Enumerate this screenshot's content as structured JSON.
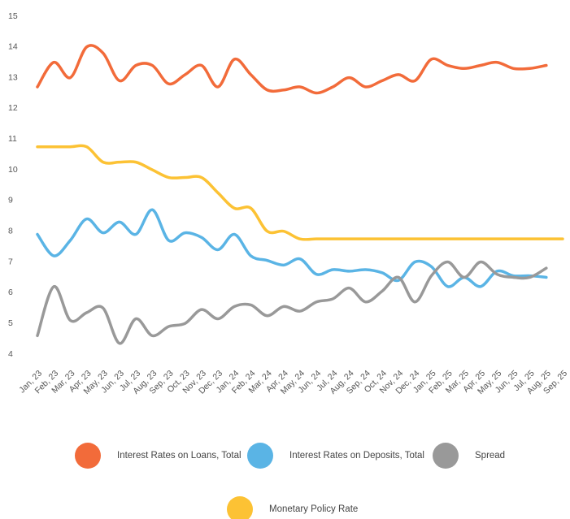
{
  "chart_data": {
    "type": "line",
    "categories": [
      "Jan, 23",
      "Feb, 23",
      "Mar, 23",
      "Apr, 23",
      "May, 23",
      "Jun, 23",
      "Jul, 23",
      "Aug, 23",
      "Sep, 23",
      "Oct, 23",
      "Nov, 23",
      "Dec, 23",
      "Jan, 24",
      "Feb, 24",
      "Mar, 24",
      "Apr, 24",
      "May, 24",
      "Jun, 24",
      "Jul, 24",
      "Aug, 24",
      "Sep, 24",
      "Oct, 24",
      "Nov, 24",
      "Dec, 24",
      "Jan, 25",
      "Feb, 25",
      "Mar, 25",
      "Apr, 25",
      "May, 25",
      "Jun, 25",
      "Jul, 25",
      "Aug, 25",
      "Sep, 25"
    ],
    "series": [
      {
        "name": "Interest Rates on Loans, Total",
        "color": "#f26b3a",
        "values": [
          12.7,
          13.5,
          13.0,
          14.0,
          13.8,
          12.9,
          13.4,
          13.4,
          12.8,
          13.1,
          13.4,
          12.7,
          13.6,
          13.1,
          12.6,
          12.6,
          12.7,
          12.5,
          12.7,
          13.0,
          12.7,
          12.9,
          13.1,
          12.9,
          13.6,
          13.4,
          13.3,
          13.4,
          13.5,
          13.3,
          13.3,
          13.4,
          null
        ]
      },
      {
        "name": "Interest Rates on Deposits, Total",
        "color": "#5ab4e5",
        "values": [
          7.9,
          7.2,
          7.7,
          8.4,
          7.95,
          8.3,
          7.9,
          8.7,
          7.7,
          7.95,
          7.8,
          7.4,
          7.9,
          7.2,
          7.05,
          6.9,
          7.1,
          6.6,
          6.75,
          6.7,
          6.75,
          6.65,
          6.4,
          7.0,
          6.85,
          6.2,
          6.5,
          6.2,
          6.7,
          6.55,
          6.55,
          6.5,
          null
        ]
      },
      {
        "name": "Spread",
        "color": "#999999",
        "values": [
          4.6,
          6.2,
          5.1,
          5.35,
          5.5,
          4.35,
          5.15,
          4.6,
          4.9,
          5.0,
          5.45,
          5.15,
          5.55,
          5.6,
          5.25,
          5.55,
          5.4,
          5.7,
          5.8,
          6.15,
          5.7,
          6.05,
          6.5,
          5.7,
          6.55,
          7.0,
          6.5,
          7.0,
          6.6,
          6.5,
          6.5,
          6.8,
          null
        ]
      },
      {
        "name": "Monetary Policy Rate",
        "color": "#fcc234",
        "values": [
          10.75,
          10.75,
          10.75,
          10.75,
          10.25,
          10.25,
          10.25,
          10.0,
          9.75,
          9.75,
          9.75,
          9.25,
          8.75,
          8.75,
          8.0,
          8.0,
          7.75,
          7.75,
          7.75,
          7.75,
          7.75,
          7.75,
          7.75,
          7.75,
          7.75,
          7.75,
          7.75,
          7.75,
          7.75,
          7.75,
          7.75,
          7.75,
          7.75
        ]
      }
    ],
    "ylim": [
      4,
      15
    ],
    "yticks": [
      4,
      5,
      6,
      7,
      8,
      9,
      10,
      11,
      12,
      13,
      14,
      15
    ],
    "grid": false
  }
}
